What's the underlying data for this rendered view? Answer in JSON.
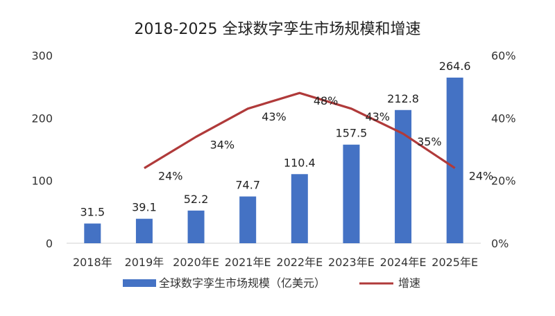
{
  "chart_data": {
    "type": "bar",
    "title": "2018-2025 全球数字孪生市场规模和增速",
    "categories": [
      "2018年",
      "2019年",
      "2020年E",
      "2021年E",
      "2022年E",
      "2023年E",
      "2024年E",
      "2025年E"
    ],
    "series": [
      {
        "name": "全球数字孪生市场规模（亿美元）",
        "type": "bar",
        "axis": "left",
        "values": [
          31.5,
          39.1,
          52.2,
          74.7,
          110.4,
          157.5,
          212.8,
          264.6
        ],
        "labels": [
          "31.5",
          "39.1",
          "52.2",
          "74.7",
          "110.4",
          "157.5",
          "212.8",
          "264.6"
        ],
        "color": "#4472c4"
      },
      {
        "name": "增速",
        "type": "line",
        "axis": "right",
        "values": [
          null,
          24,
          34,
          43,
          48,
          43,
          35,
          24
        ],
        "labels": [
          "",
          "24%",
          "34%",
          "43%",
          "48%",
          "43%",
          "35%",
          "24%"
        ],
        "color": "#b03a3a"
      }
    ],
    "y_left": {
      "ylim": [
        0,
        300
      ],
      "ticks": [
        "0",
        "100",
        "200",
        "300"
      ]
    },
    "y_right": {
      "ylim": [
        0,
        60
      ],
      "ticks": [
        "0%",
        "20%",
        "40%",
        "60%"
      ]
    },
    "legend_position": "bottom"
  }
}
